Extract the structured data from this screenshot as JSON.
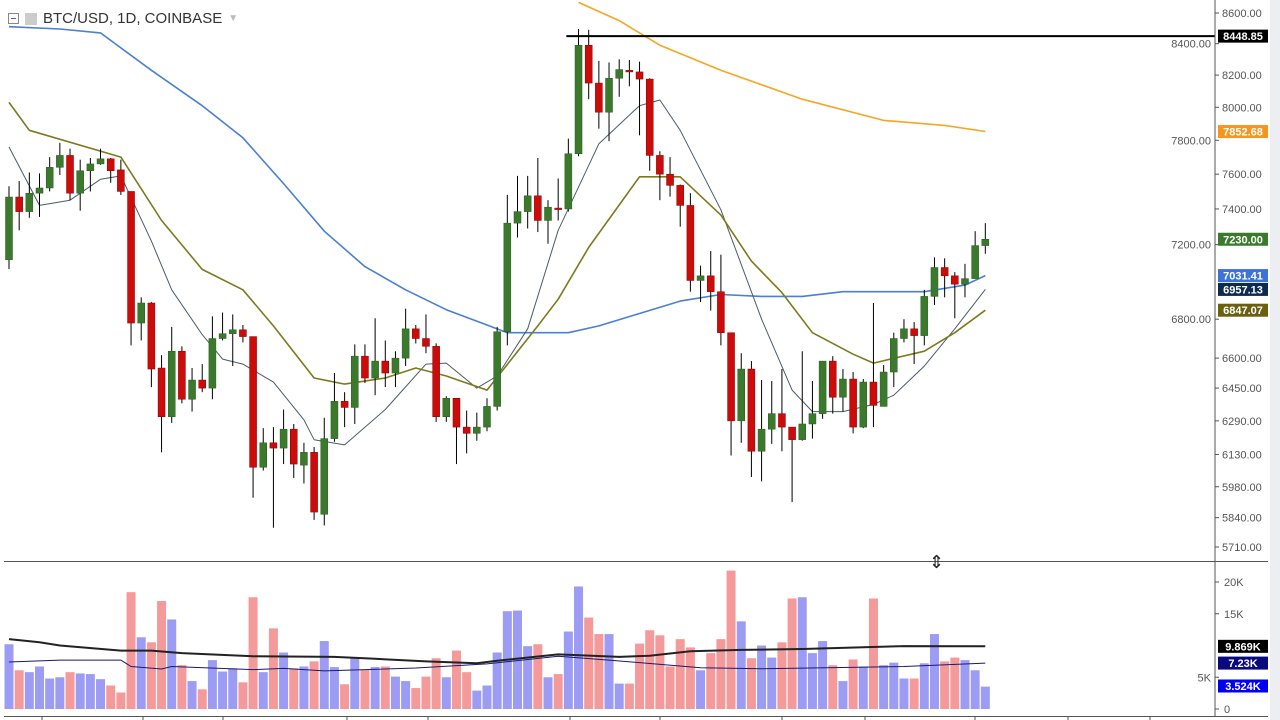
{
  "header": {
    "title": "BTC/USD, 1D, COINBASE"
  },
  "colors": {
    "up": "#3b7a2c",
    "down": "#cc0b0b",
    "wick": "#000000",
    "vol_up": "#9c9cf5",
    "vol_down": "#f59a9a",
    "axis_text": "#555555"
  },
  "chart_data": {
    "type": "candlestick",
    "title": "BTC/USD, 1D, COINBASE",
    "price_scale": "log",
    "price_ticks": [
      "8600.00",
      "8400.00",
      "8200.00",
      "8000.00",
      "7800.00",
      "7600.00",
      "7400.00",
      "7200.00",
      "6800.00",
      "6600.00",
      "6450.00",
      "6290.00",
      "6130.00",
      "5980.00",
      "5840.00",
      "5710.00"
    ],
    "price_range": [
      5710,
      8600
    ],
    "candles": [
      [
        7117,
        7530,
        7066,
        7468
      ],
      [
        7468,
        7560,
        7280,
        7385
      ],
      [
        7385,
        7610,
        7350,
        7490
      ],
      [
        7490,
        7605,
        7355,
        7520
      ],
      [
        7520,
        7700,
        7500,
        7640
      ],
      [
        7640,
        7785,
        7595,
        7710
      ],
      [
        7710,
        7750,
        7450,
        7490
      ],
      [
        7490,
        7685,
        7390,
        7620
      ],
      [
        7620,
        7695,
        7500,
        7660
      ],
      [
        7660,
        7750,
        7655,
        7690
      ],
      [
        7690,
        7695,
        7550,
        7620
      ],
      [
        7625,
        7685,
        7480,
        7500
      ],
      [
        7500,
        7500,
        6665,
        6780
      ],
      [
        6780,
        6915,
        6690,
        6885
      ],
      [
        6885,
        6890,
        6455,
        6545
      ],
      [
        6550,
        6615,
        6140,
        6310
      ],
      [
        6310,
        6760,
        6280,
        6635
      ],
      [
        6635,
        6660,
        6375,
        6395
      ],
      [
        6395,
        6550,
        6335,
        6490
      ],
      [
        6490,
        6570,
        6430,
        6450
      ],
      [
        6450,
        6815,
        6395,
        6700
      ],
      [
        6700,
        6835,
        6690,
        6725
      ],
      [
        6725,
        6825,
        6560,
        6745
      ],
      [
        6745,
        6770,
        6680,
        6710
      ],
      [
        6710,
        6710,
        5930,
        6070
      ],
      [
        6070,
        6255,
        6055,
        6185
      ],
      [
        6185,
        6260,
        5795,
        6160
      ],
      [
        6160,
        6345,
        6085,
        6250
      ],
      [
        6250,
        6275,
        6020,
        6085
      ],
      [
        6080,
        6185,
        5995,
        6140
      ],
      [
        6140,
        6165,
        5830,
        5865
      ],
      [
        5855,
        6305,
        5805,
        6205
      ],
      [
        6205,
        6525,
        6190,
        6385
      ],
      [
        6385,
        6430,
        6260,
        6355
      ],
      [
        6355,
        6670,
        6275,
        6610
      ],
      [
        6610,
        6670,
        6475,
        6500
      ],
      [
        6500,
        6805,
        6415,
        6585
      ],
      [
        6585,
        6690,
        6455,
        6525
      ],
      [
        6525,
        6635,
        6455,
        6600
      ],
      [
        6600,
        6855,
        6560,
        6750
      ],
      [
        6750,
        6770,
        6675,
        6700
      ],
      [
        6700,
        6825,
        6625,
        6660
      ],
      [
        6660,
        6675,
        6285,
        6310
      ],
      [
        6310,
        6410,
        6285,
        6400
      ],
      [
        6400,
        6400,
        6085,
        6260
      ],
      [
        6260,
        6340,
        6135,
        6230
      ],
      [
        6230,
        6330,
        6195,
        6260
      ],
      [
        6260,
        6400,
        6240,
        6360
      ],
      [
        6360,
        6760,
        6340,
        6735
      ],
      [
        6735,
        7480,
        6665,
        7320
      ],
      [
        7320,
        7590,
        7240,
        7385
      ],
      [
        7385,
        7590,
        7290,
        7475
      ],
      [
        7475,
        7695,
        7270,
        7335
      ],
      [
        7335,
        7450,
        7205,
        7410
      ],
      [
        7405,
        7575,
        7335,
        7400
      ],
      [
        7400,
        7810,
        7385,
        7720
      ],
      [
        7720,
        8495,
        7705,
        8390
      ],
      [
        8390,
        8490,
        8050,
        8150
      ],
      [
        8150,
        8290,
        7870,
        7970
      ],
      [
        7970,
        8280,
        7795,
        8180
      ],
      [
        8180,
        8300,
        8065,
        8235
      ],
      [
        8230,
        8295,
        8130,
        8220
      ],
      [
        8220,
        8285,
        7830,
        8175
      ],
      [
        8175,
        8180,
        7620,
        7710
      ],
      [
        7710,
        7735,
        7450,
        7600
      ],
      [
        7600,
        7700,
        7470,
        7535
      ],
      [
        7535,
        7540,
        7300,
        7420
      ],
      [
        7420,
        7490,
        6945,
        7005
      ],
      [
        7005,
        7085,
        6890,
        7030
      ],
      [
        7030,
        7165,
        6845,
        6945
      ],
      [
        6945,
        7145,
        6665,
        6730
      ],
      [
        6730,
        6730,
        6125,
        6290
      ],
      [
        6290,
        6625,
        6185,
        6545
      ],
      [
        6545,
        6585,
        6025,
        6145
      ],
      [
        6145,
        6490,
        6005,
        6250
      ],
      [
        6250,
        6485,
        6180,
        6325
      ],
      [
        6325,
        6545,
        6145,
        6260
      ],
      [
        6260,
        6260,
        5910,
        6200
      ],
      [
        6200,
        6635,
        6195,
        6275
      ],
      [
        6275,
        6485,
        6205,
        6325
      ],
      [
        6325,
        6585,
        6300,
        6585
      ],
      [
        6585,
        6610,
        6325,
        6405
      ],
      [
        6405,
        6545,
        6335,
        6495
      ],
      [
        6495,
        6530,
        6230,
        6260
      ],
      [
        6260,
        6495,
        6255,
        6480
      ],
      [
        6480,
        6885,
        6260,
        6365
      ],
      [
        6360,
        6565,
        6360,
        6530
      ],
      [
        6530,
        6730,
        6455,
        6700
      ],
      [
        6700,
        6800,
        6680,
        6750
      ],
      [
        6750,
        6785,
        6570,
        6715
      ],
      [
        6715,
        6955,
        6665,
        6920
      ],
      [
        6920,
        7130,
        6875,
        7075
      ],
      [
        7075,
        7125,
        6915,
        7030
      ],
      [
        7030,
        7050,
        6805,
        6985
      ],
      [
        6985,
        7095,
        6915,
        7015
      ],
      [
        7015,
        7275,
        7015,
        7195
      ],
      [
        7195,
        7320,
        7150,
        7230
      ]
    ],
    "last_price_label": {
      "text": "7230.00",
      "color": "#3b7a2c",
      "price": 7230
    },
    "horizontal_line": {
      "price": 8448.85,
      "label": "8448.85",
      "color": "#000000",
      "start_index": 55
    },
    "moving_averages": [
      {
        "color": "#f5a623",
        "width": 1.6,
        "label": "7852.68",
        "label_color": "#f7961e",
        "value": 7852.68,
        "points": [
          [
            56,
            8670
          ],
          [
            60,
            8550
          ],
          [
            64,
            8390
          ],
          [
            70,
            8230
          ],
          [
            78,
            8050
          ],
          [
            86,
            7920
          ],
          [
            92,
            7890
          ],
          [
            96,
            7852.68
          ]
        ]
      },
      {
        "color": "#4a7fd4",
        "width": 1.6,
        "label": "7031.41",
        "label_color": "#3d73d6",
        "value": 7031.41,
        "points": [
          [
            0,
            8510
          ],
          [
            5,
            8495
          ],
          [
            9,
            8470
          ],
          [
            14,
            8230
          ],
          [
            19,
            8010
          ],
          [
            23,
            7815
          ],
          [
            27,
            7545
          ],
          [
            31,
            7275
          ],
          [
            35,
            7080
          ],
          [
            39,
            6955
          ],
          [
            43,
            6850
          ],
          [
            47,
            6770
          ],
          [
            49,
            6730
          ],
          [
            55,
            6730
          ],
          [
            58,
            6765
          ],
          [
            62,
            6830
          ],
          [
            66,
            6895
          ],
          [
            70,
            6930
          ],
          [
            74,
            6920
          ],
          [
            78,
            6920
          ],
          [
            82,
            6945
          ],
          [
            86,
            6945
          ],
          [
            90,
            6945
          ],
          [
            94,
            6980
          ],
          [
            96,
            7031.41
          ]
        ]
      },
      {
        "color": "#4b5a6b",
        "width": 1,
        "label": "6957.13",
        "label_color": "#0d2b4e",
        "value": 6957.13,
        "points": [
          [
            0,
            7760
          ],
          [
            3,
            7420
          ],
          [
            6,
            7450
          ],
          [
            9,
            7570
          ],
          [
            11,
            7590
          ],
          [
            14,
            7220
          ],
          [
            16,
            6955
          ],
          [
            19,
            6720
          ],
          [
            21,
            6595
          ],
          [
            23,
            6570
          ],
          [
            26,
            6480
          ],
          [
            29,
            6295
          ],
          [
            30,
            6200
          ],
          [
            33,
            6175
          ],
          [
            37,
            6345
          ],
          [
            41,
            6570
          ],
          [
            43,
            6575
          ],
          [
            46,
            6450
          ],
          [
            48,
            6510
          ],
          [
            51,
            6750
          ],
          [
            54,
            7280
          ],
          [
            58,
            7780
          ],
          [
            62,
            8010
          ],
          [
            64,
            8045
          ],
          [
            66,
            7860
          ],
          [
            70,
            7395
          ],
          [
            74,
            6800
          ],
          [
            77,
            6440
          ],
          [
            79,
            6335
          ],
          [
            82,
            6335
          ],
          [
            85,
            6370
          ],
          [
            87,
            6415
          ],
          [
            90,
            6560
          ],
          [
            93,
            6750
          ],
          [
            96,
            6957.13
          ]
        ]
      },
      {
        "color": "#7d7a1e",
        "width": 1.6,
        "label": "6847.07",
        "label_color": "#6b5f10",
        "value": 6847.07,
        "points": [
          [
            0,
            8030
          ],
          [
            2,
            7860
          ],
          [
            11,
            7700
          ],
          [
            15,
            7335
          ],
          [
            19,
            7065
          ],
          [
            23,
            6955
          ],
          [
            26,
            6765
          ],
          [
            30,
            6500
          ],
          [
            33,
            6470
          ],
          [
            37,
            6500
          ],
          [
            40,
            6550
          ],
          [
            43,
            6510
          ],
          [
            47,
            6440
          ],
          [
            52,
            6765
          ],
          [
            54,
            6905
          ],
          [
            57,
            7185
          ],
          [
            62,
            7585
          ],
          [
            66,
            7585
          ],
          [
            70,
            7365
          ],
          [
            73,
            7110
          ],
          [
            76,
            6940
          ],
          [
            79,
            6730
          ],
          [
            83,
            6620
          ],
          [
            85,
            6575
          ],
          [
            90,
            6635
          ],
          [
            93,
            6730
          ],
          [
            96,
            6847.07
          ]
        ]
      }
    ],
    "volume": {
      "ticks": [
        "20K",
        "15K",
        "5K",
        "0"
      ],
      "tick_values": [
        20,
        15,
        5,
        0
      ],
      "unit": "K",
      "values": [
        10.2,
        6.1,
        5.8,
        6.7,
        4.8,
        5.0,
        5.8,
        5.6,
        5.5,
        4.7,
        3.7,
        2.6,
        18.4,
        11.3,
        10.5,
        17.0,
        14.1,
        6.9,
        4.4,
        3.1,
        7.7,
        5.9,
        6.4,
        4.2,
        17.6,
        5.8,
        12.7,
        8.9,
        6.4,
        6.7,
        7.5,
        10.7,
        6.6,
        3.9,
        8.0,
        6.2,
        6.6,
        6.7,
        5.1,
        4.4,
        3.3,
        5.1,
        8.0,
        5.0,
        9.2,
        5.8,
        2.9,
        3.7,
        8.9,
        15.4,
        15.5,
        9.9,
        10.2,
        5.0,
        5.5,
        12.2,
        19.3,
        14.4,
        11.8,
        11.8,
        4.0,
        4.0,
        10.3,
        12.4,
        11.6,
        6.7,
        11.0,
        9.7,
        6.1,
        8.8,
        11.0,
        21.8,
        13.8,
        8.0,
        10.0,
        8.1,
        10.5,
        17.4,
        17.6,
        8.8,
        10.7,
        6.9,
        4.4,
        7.8,
        6.7,
        17.4,
        6.9,
        7.3,
        4.8,
        4.8,
        7.2,
        11.8,
        7.5,
        8.1,
        7.7,
        6.1,
        3.524
      ],
      "up": [
        1,
        0,
        1,
        1,
        1,
        1,
        0,
        1,
        1,
        1,
        0,
        0,
        0,
        1,
        0,
        0,
        1,
        0,
        1,
        0,
        1,
        1,
        1,
        0,
        0,
        1,
        0,
        1,
        0,
        1,
        0,
        1,
        1,
        0,
        1,
        0,
        1,
        0,
        1,
        1,
        0,
        0,
        0,
        1,
        0,
        0,
        1,
        1,
        1,
        1,
        1,
        1,
        0,
        1,
        0,
        1,
        1,
        0,
        0,
        1,
        1,
        0,
        0,
        0,
        0,
        0,
        0,
        0,
        1,
        0,
        0,
        0,
        1,
        0,
        1,
        1,
        0,
        0,
        1,
        1,
        1,
        0,
        1,
        0,
        1,
        0,
        1,
        1,
        1,
        0,
        1,
        1,
        0,
        0,
        1,
        1,
        1
      ],
      "ma_lines": [
        {
          "color": "#222222",
          "width": 2,
          "label": "9.869K",
          "label_color": "#000000",
          "value": 9.869,
          "points": [
            [
              0,
              11.0
            ],
            [
              3,
              10.5
            ],
            [
              5,
              10.0
            ],
            [
              11,
              9.2
            ],
            [
              14,
              9.2
            ],
            [
              17,
              8.8
            ],
            [
              24,
              8.3
            ],
            [
              32,
              8.2
            ],
            [
              36,
              7.9
            ],
            [
              41,
              7.5
            ],
            [
              46,
              7.2
            ],
            [
              48,
              7.6
            ],
            [
              54,
              8.6
            ],
            [
              60,
              8.2
            ],
            [
              63,
              8.4
            ],
            [
              67,
              9.1
            ],
            [
              72,
              9.3
            ],
            [
              78,
              9.45
            ],
            [
              88,
              9.9
            ],
            [
              96,
              9.869
            ]
          ]
        },
        {
          "color": "#1a1a6e",
          "width": 1,
          "label": "7.23K",
          "label_color": "#0a0a80",
          "value": 7.23,
          "points": [
            [
              0,
              7.4
            ],
            [
              5,
              7.7
            ],
            [
              11,
              7.7
            ],
            [
              12,
              6.7
            ],
            [
              15,
              6.3
            ],
            [
              16,
              6.7
            ],
            [
              24,
              6.2
            ],
            [
              27,
              6.4
            ],
            [
              31,
              6.0
            ],
            [
              40,
              6.45
            ],
            [
              47,
              7.1
            ],
            [
              54,
              8.3
            ],
            [
              59,
              7.7
            ],
            [
              68,
              6.5
            ],
            [
              74,
              6.35
            ],
            [
              88,
              6.7
            ],
            [
              96,
              7.23
            ]
          ]
        }
      ],
      "last_label": {
        "text": "3.524K",
        "color": "#0000ee",
        "value": 3.524
      }
    }
  }
}
